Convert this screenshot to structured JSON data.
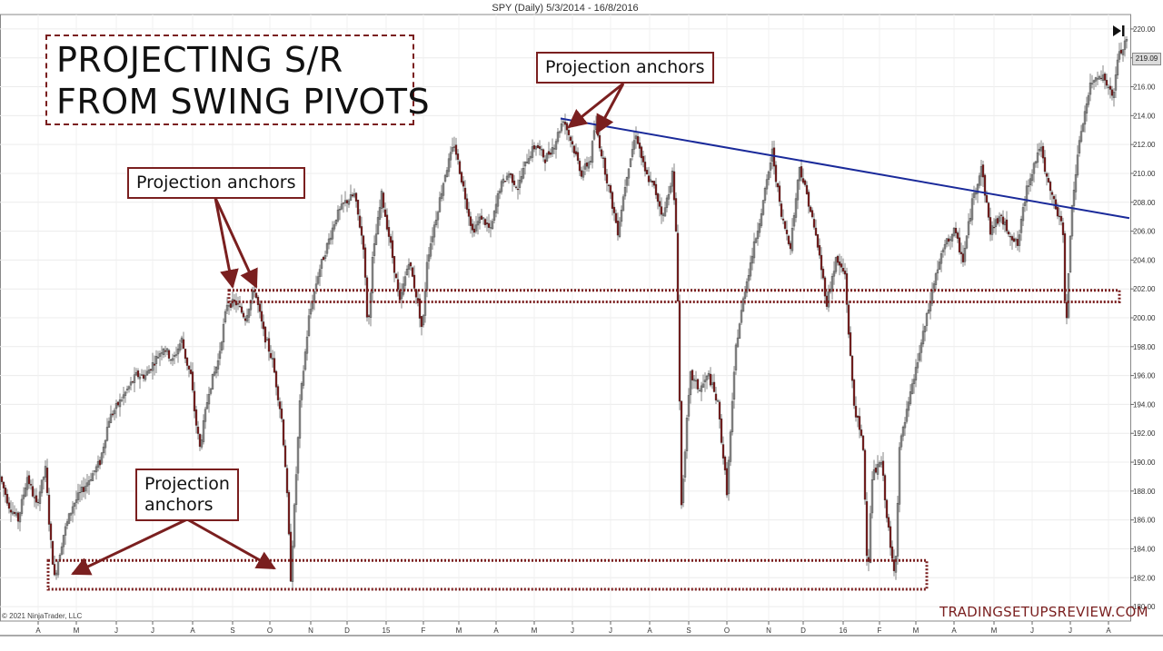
{
  "chart_data": {
    "type": "candlestick",
    "title": "SPY (Daily)  5/3/2014 - 16/8/2016",
    "y_axis": {
      "ylim": [
        179,
        221
      ],
      "ticks": [
        "220.00",
        "218.00",
        "216.00",
        "214.00",
        "212.00",
        "210.00",
        "208.00",
        "206.00",
        "204.00",
        "202.00",
        "200.00",
        "198.00",
        "196.00",
        "194.00",
        "192.00",
        "190.00",
        "188.00",
        "186.00",
        "184.00",
        "182.00",
        "180.00"
      ],
      "last_price": "219.09"
    },
    "x_axis": {
      "ticks": [
        "A",
        "M",
        "J",
        "J",
        "A",
        "S",
        "O",
        "N",
        "D",
        "15",
        "F",
        "M",
        "A",
        "M",
        "J",
        "J",
        "A",
        "S",
        "O",
        "N",
        "D",
        "16",
        "F",
        "M",
        "A",
        "M",
        "J",
        "J",
        "A"
      ]
    },
    "price_path": [
      [
        0,
        189
      ],
      [
        10,
        187
      ],
      [
        20,
        186
      ],
      [
        30,
        189
      ],
      [
        40,
        187
      ],
      [
        50,
        189.5
      ],
      [
        55,
        185
      ],
      [
        60,
        182
      ],
      [
        70,
        185
      ],
      [
        80,
        187
      ],
      [
        90,
        188
      ],
      [
        100,
        189
      ],
      [
        110,
        190
      ],
      [
        120,
        193
      ],
      [
        130,
        194
      ],
      [
        140,
        195
      ],
      [
        150,
        196
      ],
      [
        160,
        196
      ],
      [
        170,
        197
      ],
      [
        180,
        198
      ],
      [
        190,
        197
      ],
      [
        200,
        198.5
      ],
      [
        205,
        197
      ],
      [
        210,
        196
      ],
      [
        215,
        193
      ],
      [
        220,
        191
      ],
      [
        230,
        195
      ],
      [
        240,
        197
      ],
      [
        250,
        201
      ],
      [
        260,
        201
      ],
      [
        270,
        200
      ],
      [
        280,
        202
      ],
      [
        290,
        199
      ],
      [
        300,
        197
      ],
      [
        310,
        193
      ],
      [
        315,
        189
      ],
      [
        320,
        182
      ],
      [
        330,
        194
      ],
      [
        340,
        200
      ],
      [
        350,
        203
      ],
      [
        360,
        205
      ],
      [
        370,
        207
      ],
      [
        380,
        208
      ],
      [
        390,
        208.5
      ],
      [
        400,
        205
      ],
      [
        405,
        199
      ],
      [
        410,
        204
      ],
      [
        420,
        208.5
      ],
      [
        430,
        205
      ],
      [
        440,
        201
      ],
      [
        450,
        204
      ],
      [
        460,
        201
      ],
      [
        465,
        199
      ],
      [
        470,
        204
      ],
      [
        480,
        207
      ],
      [
        490,
        210
      ],
      [
        500,
        212
      ],
      [
        510,
        209
      ],
      [
        520,
        206
      ],
      [
        530,
        207
      ],
      [
        540,
        206
      ],
      [
        550,
        209
      ],
      [
        560,
        210
      ],
      [
        570,
        209
      ],
      [
        580,
        211
      ],
      [
        590,
        212
      ],
      [
        600,
        211
      ],
      [
        610,
        212
      ],
      [
        620,
        213.8
      ],
      [
        630,
        212
      ],
      [
        640,
        210
      ],
      [
        650,
        211
      ],
      [
        655,
        213.5
      ],
      [
        660,
        212
      ],
      [
        670,
        209
      ],
      [
        680,
        206
      ],
      [
        690,
        210
      ],
      [
        700,
        212.8
      ],
      [
        710,
        210
      ],
      [
        720,
        209
      ],
      [
        730,
        207
      ],
      [
        740,
        210
      ],
      [
        745,
        205
      ],
      [
        750,
        187
      ],
      [
        755,
        192
      ],
      [
        760,
        196
      ],
      [
        770,
        195
      ],
      [
        780,
        196
      ],
      [
        790,
        194
      ],
      [
        800,
        188
      ],
      [
        810,
        198
      ],
      [
        820,
        202
      ],
      [
        830,
        205
      ],
      [
        840,
        208
      ],
      [
        850,
        211.5
      ],
      [
        860,
        207
      ],
      [
        870,
        205
      ],
      [
        880,
        210.5
      ],
      [
        890,
        208
      ],
      [
        900,
        205
      ],
      [
        910,
        201
      ],
      [
        920,
        204
      ],
      [
        930,
        203
      ],
      [
        935,
        198
      ],
      [
        940,
        194
      ],
      [
        950,
        191
      ],
      [
        955,
        182
      ],
      [
        960,
        189
      ],
      [
        970,
        190
      ],
      [
        980,
        184
      ],
      [
        985,
        182
      ],
      [
        990,
        191
      ],
      [
        1000,
        194
      ],
      [
        1010,
        197
      ],
      [
        1020,
        200
      ],
      [
        1030,
        203
      ],
      [
        1040,
        205
      ],
      [
        1050,
        206
      ],
      [
        1060,
        204
      ],
      [
        1070,
        208
      ],
      [
        1080,
        210.5
      ],
      [
        1090,
        206
      ],
      [
        1100,
        207
      ],
      [
        1110,
        206
      ],
      [
        1120,
        205
      ],
      [
        1130,
        209
      ],
      [
        1140,
        211
      ],
      [
        1145,
        212
      ],
      [
        1150,
        210
      ],
      [
        1160,
        208
      ],
      [
        1170,
        206
      ],
      [
        1173,
        199
      ],
      [
        1180,
        208
      ],
      [
        1190,
        213
      ],
      [
        1200,
        216
      ],
      [
        1210,
        217
      ],
      [
        1220,
        216
      ],
      [
        1225,
        215
      ],
      [
        1230,
        218
      ],
      [
        1240,
        219.1
      ]
    ],
    "lines": [
      {
        "type": "trendline",
        "from": [
          617,
          213.8
        ],
        "to": [
          1243,
          206.9
        ],
        "color": "#1a2a9a"
      },
      {
        "type": "zone",
        "x": [
          252,
          1232
        ],
        "y": [
          201.1,
          201.9
        ],
        "style": "dotted",
        "color": "#7a1f1f"
      },
      {
        "type": "zone",
        "x": [
          53,
          1020
        ],
        "y": [
          181.2,
          183.2
        ],
        "style": "dotted",
        "color": "#7a1f1f"
      }
    ],
    "annotations": [
      {
        "title_line1": "PROJECTING S/R",
        "title_line2": "FROM SWING PIVOTS"
      },
      {
        "callout": "Projection anchors"
      },
      {
        "callout": "Projection anchors"
      },
      {
        "callout_line1": "Projection",
        "callout_line2": "anchors"
      }
    ]
  },
  "title_box": {
    "line1": "PROJECTING S/R",
    "line2": "FROM SWING PIVOTS"
  },
  "callouts": {
    "top": "Projection anchors",
    "left": "Projection anchors",
    "bottom_line1": "Projection",
    "bottom_line2": "anchors"
  },
  "footer": {
    "watermark": "TRADINGSETUPSREVIEW.COM",
    "copyright": "© 2021 NinjaTrader, LLC"
  },
  "colors": {
    "accent": "#7a1f1f",
    "trendline": "#1a2a9a",
    "candle_up": "#8a8a8a",
    "candle_down": "#7a1a1a"
  }
}
